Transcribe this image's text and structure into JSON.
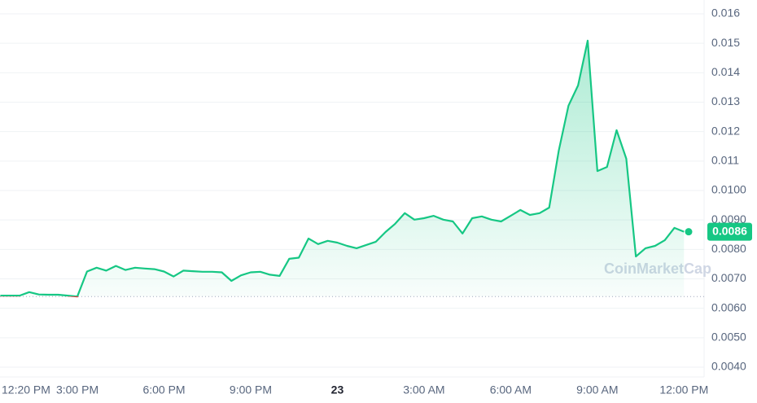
{
  "chart_data": {
    "type": "line",
    "watermark": "CoinMarketCap",
    "categories": [
      "12:20 PM",
      null,
      null,
      null,
      null,
      null,
      null,
      null,
      "3:00 PM",
      null,
      null,
      null,
      null,
      null,
      null,
      null,
      null,
      "6:00 PM",
      null,
      null,
      null,
      null,
      null,
      null,
      null,
      null,
      "9:00 PM",
      null,
      null,
      null,
      null,
      null,
      null,
      null,
      null,
      "23",
      null,
      null,
      null,
      null,
      null,
      null,
      null,
      null,
      "3:00 AM",
      null,
      null,
      null,
      null,
      null,
      null,
      null,
      null,
      "6:00 AM",
      null,
      null,
      null,
      null,
      null,
      null,
      null,
      null,
      "9:00 AM",
      null,
      null,
      null,
      null,
      null,
      null,
      null,
      null,
      "12:00 PM"
    ],
    "series": [
      {
        "color": "#16c784",
        "values": [
          0.00643,
          0.00643,
          0.00643,
          0.00655,
          0.00647,
          0.00646,
          0.00646,
          0.00643,
          0.0064,
          0.00725,
          0.00738,
          0.00728,
          0.00744,
          0.0073,
          0.00738,
          0.00735,
          0.00733,
          0.00725,
          0.00708,
          0.00728,
          0.00726,
          0.00724,
          0.00724,
          0.00722,
          0.00693,
          0.00712,
          0.00722,
          0.00724,
          0.00714,
          0.0071,
          0.00768,
          0.00772,
          0.00837,
          0.00818,
          0.00829,
          0.00823,
          0.00812,
          0.00804,
          0.00815,
          0.00826,
          0.00859,
          0.00887,
          0.00923,
          0.00901,
          0.00906,
          0.00914,
          0.00901,
          0.00895,
          0.00854,
          0.00906,
          0.00912,
          0.00901,
          0.00895,
          0.00914,
          0.00934,
          0.00917,
          0.00923,
          0.00942,
          0.01136,
          0.01288,
          0.01357,
          0.01509,
          0.01066,
          0.0108,
          0.01205,
          0.01108,
          0.00776,
          0.00804,
          0.00812,
          0.00831,
          0.00873,
          0.0086
        ]
      }
    ],
    "below_color": "#ea3943",
    "open_price": 0.0064,
    "current_price": 0.0086,
    "ylim": [
      0.004,
      0.016
    ],
    "yticks": [
      {
        "value": 0.004,
        "label": "0.0040"
      },
      {
        "value": 0.005,
        "label": "0.0050"
      },
      {
        "value": 0.006,
        "label": "0.0060"
      },
      {
        "value": 0.007,
        "label": "0.0070"
      },
      {
        "value": 0.008,
        "label": "0.0080"
      },
      {
        "value": 0.009,
        "label": "0.0090"
      },
      {
        "value": 0.01,
        "label": "0.0100"
      },
      0.011,
      0.012,
      0.013,
      0.014,
      0.015,
      0.016
    ],
    "grid": true
  }
}
